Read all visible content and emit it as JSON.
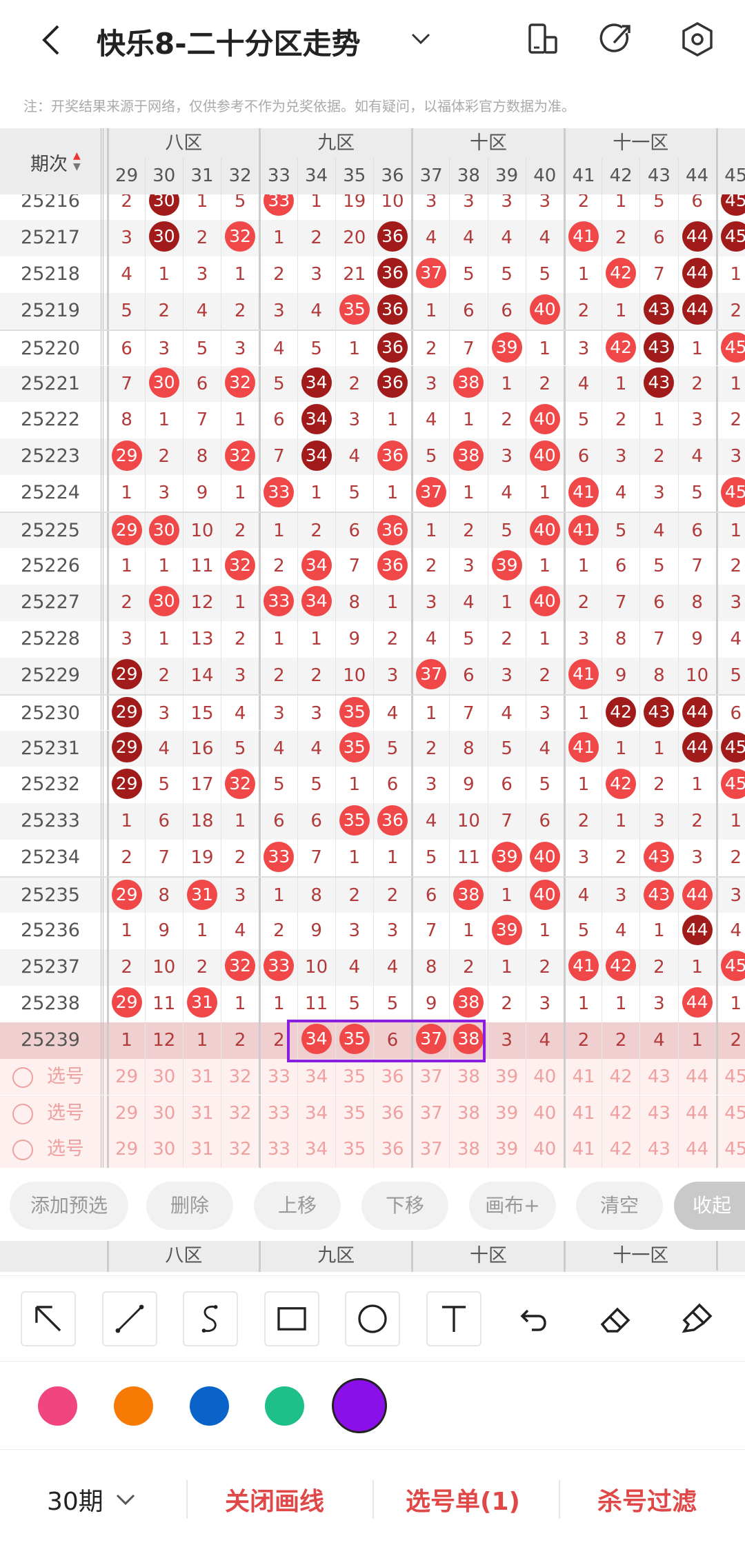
{
  "header": {
    "title": "快乐8-二十分区走势"
  },
  "note": "注：开奖结果来源于网络，仅供参考不作为兑奖依据。如有疑问，以福体彩官方数据为准。",
  "table": {
    "period_header": "期次",
    "zones": [
      "八区",
      "九区",
      "十区",
      "十一区"
    ],
    "numbers": [
      "29",
      "30",
      "31",
      "32",
      "33",
      "34",
      "35",
      "36",
      "37",
      "38",
      "39",
      "40",
      "41",
      "42",
      "43",
      "44",
      "45"
    ],
    "rows": [
      {
        "period": "25216",
        "values": [
          "2",
          "30",
          "1",
          "5",
          "33",
          "1",
          "19",
          "10",
          "3",
          "3",
          "3",
          "3",
          "2",
          "1",
          "5",
          "6",
          "45"
        ],
        "balls": {
          "30": "dark",
          "33": "red",
          "45": "dark"
        }
      },
      {
        "period": "25217",
        "values": [
          "3",
          "30",
          "2",
          "32",
          "1",
          "2",
          "20",
          "36",
          "4",
          "4",
          "4",
          "4",
          "41",
          "2",
          "6",
          "44",
          "45"
        ],
        "balls": {
          "30": "dark",
          "32": "red",
          "36": "dark",
          "41": "red",
          "44": "dark",
          "45": "dark"
        }
      },
      {
        "period": "25218",
        "values": [
          "4",
          "1",
          "3",
          "1",
          "2",
          "3",
          "21",
          "36",
          "37",
          "5",
          "5",
          "5",
          "1",
          "42",
          "7",
          "44",
          "1"
        ],
        "balls": {
          "36": "dark",
          "37": "red",
          "42": "red",
          "44": "dark"
        }
      },
      {
        "period": "25219",
        "values": [
          "5",
          "2",
          "4",
          "2",
          "3",
          "4",
          "35",
          "36",
          "1",
          "6",
          "6",
          "40",
          "2",
          "1",
          "43",
          "44",
          "2"
        ],
        "balls": {
          "35": "red",
          "36": "dark",
          "40": "red",
          "43": "dark",
          "44": "dark"
        }
      },
      {
        "period": "25220",
        "values": [
          "6",
          "3",
          "5",
          "3",
          "4",
          "5",
          "1",
          "36",
          "2",
          "7",
          "39",
          "1",
          "3",
          "42",
          "43",
          "1",
          "45"
        ],
        "balls": {
          "36": "dark",
          "39": "red",
          "42": "red",
          "43": "dark",
          "45": "red"
        }
      },
      {
        "period": "25221",
        "values": [
          "7",
          "30",
          "6",
          "32",
          "5",
          "34",
          "2",
          "36",
          "3",
          "38",
          "1",
          "2",
          "4",
          "1",
          "43",
          "2",
          "1"
        ],
        "balls": {
          "30": "red",
          "32": "red",
          "34": "dark",
          "36": "dark",
          "38": "red",
          "43": "dark"
        }
      },
      {
        "period": "25222",
        "values": [
          "8",
          "1",
          "7",
          "1",
          "6",
          "34",
          "3",
          "1",
          "4",
          "1",
          "2",
          "40",
          "5",
          "2",
          "1",
          "3",
          "2"
        ],
        "balls": {
          "34": "dark",
          "40": "red"
        }
      },
      {
        "period": "25223",
        "values": [
          "29",
          "2",
          "8",
          "32",
          "7",
          "34",
          "4",
          "36",
          "5",
          "38",
          "3",
          "40",
          "6",
          "3",
          "2",
          "4",
          "3"
        ],
        "balls": {
          "29": "red",
          "32": "red",
          "34": "dark",
          "36": "red",
          "38": "red",
          "40": "red"
        }
      },
      {
        "period": "25224",
        "values": [
          "1",
          "3",
          "9",
          "1",
          "33",
          "1",
          "5",
          "1",
          "37",
          "1",
          "4",
          "1",
          "41",
          "4",
          "3",
          "5",
          "45"
        ],
        "balls": {
          "33": "red",
          "37": "red",
          "41": "red",
          "45": "red"
        }
      },
      {
        "period": "25225",
        "values": [
          "29",
          "30",
          "10",
          "2",
          "1",
          "2",
          "6",
          "36",
          "1",
          "2",
          "5",
          "40",
          "41",
          "5",
          "4",
          "6",
          "1"
        ],
        "balls": {
          "29": "red",
          "30": "red",
          "36": "red",
          "40": "red",
          "41": "red"
        }
      },
      {
        "period": "25226",
        "values": [
          "1",
          "1",
          "11",
          "32",
          "2",
          "34",
          "7",
          "36",
          "2",
          "3",
          "39",
          "1",
          "1",
          "6",
          "5",
          "7",
          "2"
        ],
        "balls": {
          "32": "red",
          "34": "red",
          "36": "red",
          "39": "red"
        }
      },
      {
        "period": "25227",
        "values": [
          "2",
          "30",
          "12",
          "1",
          "33",
          "34",
          "8",
          "1",
          "3",
          "4",
          "1",
          "40",
          "2",
          "7",
          "6",
          "8",
          "3"
        ],
        "balls": {
          "30": "red",
          "33": "red",
          "34": "red",
          "40": "red"
        }
      },
      {
        "period": "25228",
        "values": [
          "3",
          "1",
          "13",
          "2",
          "1",
          "1",
          "9",
          "2",
          "4",
          "5",
          "2",
          "1",
          "3",
          "8",
          "7",
          "9",
          "4"
        ],
        "balls": {}
      },
      {
        "period": "25229",
        "values": [
          "29",
          "2",
          "14",
          "3",
          "2",
          "2",
          "10",
          "3",
          "37",
          "6",
          "3",
          "2",
          "41",
          "9",
          "8",
          "10",
          "5"
        ],
        "balls": {
          "29": "dark",
          "37": "red",
          "41": "red"
        }
      },
      {
        "period": "25230",
        "values": [
          "29",
          "3",
          "15",
          "4",
          "3",
          "3",
          "35",
          "4",
          "1",
          "7",
          "4",
          "3",
          "1",
          "42",
          "43",
          "44",
          "6"
        ],
        "balls": {
          "29": "dark",
          "35": "red",
          "42": "dark",
          "43": "dark",
          "44": "dark"
        }
      },
      {
        "period": "25231",
        "values": [
          "29",
          "4",
          "16",
          "5",
          "4",
          "4",
          "35",
          "5",
          "2",
          "8",
          "5",
          "4",
          "41",
          "1",
          "1",
          "44",
          "45"
        ],
        "balls": {
          "29": "dark",
          "35": "red",
          "41": "red",
          "44": "dark",
          "45": "dark"
        }
      },
      {
        "period": "25232",
        "values": [
          "29",
          "5",
          "17",
          "32",
          "5",
          "5",
          "1",
          "6",
          "3",
          "9",
          "6",
          "5",
          "1",
          "42",
          "2",
          "1",
          "45"
        ],
        "balls": {
          "29": "dark",
          "32": "red",
          "42": "red",
          "45": "red"
        }
      },
      {
        "period": "25233",
        "values": [
          "1",
          "6",
          "18",
          "1",
          "6",
          "6",
          "35",
          "36",
          "4",
          "10",
          "7",
          "6",
          "2",
          "1",
          "3",
          "2",
          "1"
        ],
        "balls": {
          "35": "red",
          "36": "red"
        }
      },
      {
        "period": "25234",
        "values": [
          "2",
          "7",
          "19",
          "2",
          "33",
          "7",
          "1",
          "1",
          "5",
          "11",
          "39",
          "40",
          "3",
          "2",
          "43",
          "3",
          "2"
        ],
        "balls": {
          "33": "red",
          "39": "red",
          "40": "red",
          "43": "red"
        }
      },
      {
        "period": "25235",
        "values": [
          "29",
          "8",
          "31",
          "3",
          "1",
          "8",
          "2",
          "2",
          "6",
          "38",
          "1",
          "40",
          "4",
          "3",
          "43",
          "44",
          "3"
        ],
        "balls": {
          "29": "red",
          "31": "red",
          "38": "red",
          "40": "red",
          "43": "red",
          "44": "red"
        }
      },
      {
        "period": "25236",
        "values": [
          "1",
          "9",
          "1",
          "4",
          "2",
          "9",
          "3",
          "3",
          "7",
          "1",
          "39",
          "1",
          "5",
          "4",
          "1",
          "44",
          "4"
        ],
        "balls": {
          "39": "red",
          "44": "dark"
        }
      },
      {
        "period": "25237",
        "values": [
          "2",
          "10",
          "2",
          "32",
          "33",
          "10",
          "4",
          "4",
          "8",
          "2",
          "1",
          "2",
          "41",
          "42",
          "2",
          "1",
          "45"
        ],
        "balls": {
          "32": "red",
          "33": "red",
          "41": "red",
          "42": "red",
          "45": "red"
        }
      },
      {
        "period": "25238",
        "values": [
          "29",
          "11",
          "31",
          "1",
          "1",
          "11",
          "5",
          "5",
          "9",
          "38",
          "2",
          "3",
          "1",
          "1",
          "3",
          "44",
          "1"
        ],
        "balls": {
          "29": "red",
          "31": "red",
          "38": "red",
          "44": "red"
        }
      },
      {
        "period": "25239",
        "values": [
          "1",
          "12",
          "1",
          "2",
          "2",
          "34",
          "35",
          "6",
          "37",
          "38",
          "3",
          "4",
          "2",
          "2",
          "4",
          "1",
          "2"
        ],
        "balls": {
          "34": "red",
          "35": "red",
          "37": "red",
          "38": "red"
        }
      }
    ],
    "select_label": "选号",
    "select_rows": 3
  },
  "actions": [
    "添加预选",
    "删除",
    "上移",
    "下移",
    "画布+",
    "清空",
    "收起"
  ],
  "tools": [
    "arrow-tool",
    "line-tool",
    "curve-tool",
    "rectangle-tool",
    "circle-tool",
    "text-tool",
    "undo",
    "eraser",
    "clear-brush"
  ],
  "colors": [
    "#f0457f",
    "#f77a05",
    "#0a63c9",
    "#1fbf8a",
    "#8a0fe8"
  ],
  "selected_color": "#8a0fe8",
  "bottom": {
    "period_select": "30期",
    "close_draw": "关闭画线",
    "pick_list": "选号单(1)",
    "kill_filter": "杀号过滤"
  }
}
